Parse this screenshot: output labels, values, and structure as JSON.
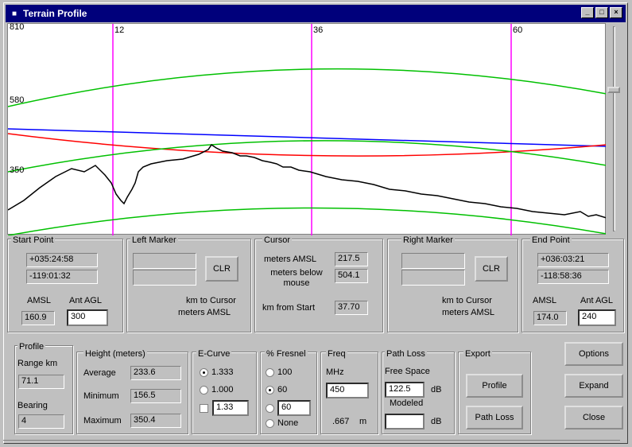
{
  "window": {
    "title": "Terrain Profile",
    "min": "_",
    "max": "□",
    "close": "×"
  },
  "plot": {
    "y_labels": [
      "810",
      "580",
      "350"
    ],
    "marker_labels": [
      "12",
      "36",
      "60"
    ]
  },
  "start_point": {
    "title": "Start Point",
    "lat": "+035:24:58",
    "lon": "-119:01:32",
    "amsl_label": "AMSL",
    "amsl": "160.9",
    "ant_label": "Ant AGL",
    "ant": "300"
  },
  "left_marker": {
    "title": "Left Marker",
    "clr": "CLR",
    "km_label": "km to Cursor",
    "m_label": "meters AMSL"
  },
  "cursor": {
    "title": "Cursor",
    "amsl_label": "meters AMSL",
    "amsl": "217.5",
    "below_label": "meters below mouse",
    "below": "504.1",
    "km_label": "km from Start",
    "km": "37.70"
  },
  "right_marker": {
    "title": "Right Marker",
    "clr": "CLR",
    "km_label": "km to Cursor",
    "m_label": "meters AMSL"
  },
  "end_point": {
    "title": "End Point",
    "lat": "+036:03:21",
    "lon": "-118:58:36",
    "amsl_label": "AMSL",
    "amsl": "174.0",
    "ant_label": "Ant AGL",
    "ant": "240"
  },
  "profile": {
    "title": "Profile",
    "range_label": "Range km",
    "range": "71.1",
    "bearing_label": "Bearing",
    "bearing": "4"
  },
  "height": {
    "title": "Height (meters)",
    "avg_label": "Average",
    "avg": "233.6",
    "min_label": "Minimum",
    "min": "156.5",
    "max_label": "Maximum",
    "max": "350.4"
  },
  "ecurve": {
    "title": "E-Curve",
    "options": [
      "1.333",
      "1.000"
    ],
    "custom": "1.33"
  },
  "fresnel": {
    "title": "% Fresnel",
    "options": [
      "100",
      "60"
    ],
    "custom": "60",
    "none": "None"
  },
  "freq": {
    "title": "Freq",
    "unit_label": "MHz",
    "value": "450",
    "wl": ".667",
    "wl_unit": "m"
  },
  "path_loss": {
    "title": "Path Loss",
    "fs_label": "Free Space",
    "fs": "122.5",
    "db1": "dB",
    "mod_label": "Modeled",
    "mod": "",
    "db2": "dB"
  },
  "export": {
    "title": "Export",
    "profile_btn": "Profile",
    "pathloss_btn": "Path Loss"
  },
  "buttons": {
    "options": "Options",
    "expand": "Expand",
    "close": "Close"
  },
  "colors": {
    "title_bar": "#00007b",
    "marker": "#ff00ff",
    "fresnel": "#00c000",
    "los": "#0000ff",
    "earth": "#ff0000",
    "terrain": "#000000"
  }
}
